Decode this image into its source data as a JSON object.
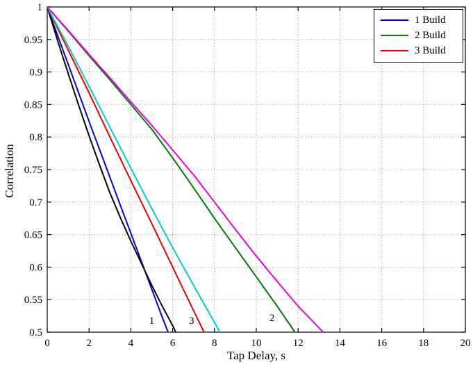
{
  "figure": {
    "background": "#ffffff"
  },
  "chart_data": {
    "type": "line",
    "title": "",
    "xlabel": "Tap Delay, s",
    "ylabel": "Correlation",
    "xlim": [
      0,
      20
    ],
    "ylim": [
      0.5,
      1
    ],
    "xticks": [
      0,
      2,
      4,
      6,
      8,
      10,
      12,
      14,
      16,
      18,
      20
    ],
    "yticks": [
      0.5,
      0.55,
      0.6,
      0.65,
      0.7,
      0.75,
      0.8,
      0.85,
      0.9,
      0.95,
      1
    ],
    "grid": "dotted",
    "legend": {
      "position": "top-right",
      "entries": [
        {
          "label": "1 Build",
          "color": "#0000dd"
        },
        {
          "label": "2 Build",
          "color": "#007a00"
        },
        {
          "label": "3 Build",
          "color": "#e80000"
        }
      ]
    },
    "series": [
      {
        "id": "blue-1-build",
        "color": "#0000dd",
        "points": [
          [
            0,
            1
          ],
          [
            0.5,
            0.956
          ],
          [
            1,
            0.912
          ],
          [
            1.5,
            0.868
          ],
          [
            2,
            0.824
          ],
          [
            2.5,
            0.781
          ],
          [
            3,
            0.738
          ],
          [
            3.5,
            0.695
          ],
          [
            4,
            0.652
          ],
          [
            4.5,
            0.609
          ],
          [
            5,
            0.566
          ],
          [
            5.5,
            0.523
          ],
          [
            5.78,
            0.5
          ]
        ]
      },
      {
        "id": "green-2-build",
        "color": "#007a00",
        "points": [
          [
            0,
            1
          ],
          [
            1,
            0.963
          ],
          [
            2,
            0.925
          ],
          [
            3,
            0.888
          ],
          [
            4,
            0.85
          ],
          [
            5,
            0.812
          ],
          [
            6,
            0.768
          ],
          [
            7,
            0.722
          ],
          [
            8,
            0.675
          ],
          [
            9,
            0.63
          ],
          [
            10,
            0.585
          ],
          [
            11,
            0.54
          ],
          [
            11.85,
            0.5
          ]
        ]
      },
      {
        "id": "red-3-build",
        "color": "#e80000",
        "points": [
          [
            0,
            1
          ],
          [
            1,
            0.934
          ],
          [
            2,
            0.868
          ],
          [
            3,
            0.8
          ],
          [
            4,
            0.733
          ],
          [
            5,
            0.667
          ],
          [
            6,
            0.6
          ],
          [
            7,
            0.533
          ],
          [
            7.5,
            0.5
          ]
        ]
      },
      {
        "id": "black",
        "color": "#000000",
        "points": [
          [
            0,
            1
          ],
          [
            0.5,
            0.948
          ],
          [
            1,
            0.898
          ],
          [
            1.5,
            0.849
          ],
          [
            2,
            0.802
          ],
          [
            2.5,
            0.757
          ],
          [
            3,
            0.714
          ],
          [
            3.5,
            0.676
          ],
          [
            4,
            0.64
          ],
          [
            4.5,
            0.606
          ],
          [
            5,
            0.572
          ],
          [
            5.5,
            0.54
          ],
          [
            6,
            0.51
          ],
          [
            6.15,
            0.5
          ]
        ]
      },
      {
        "id": "cyan",
        "color": "#00cccc",
        "points": [
          [
            0,
            1
          ],
          [
            1,
            0.94
          ],
          [
            2,
            0.878
          ],
          [
            3,
            0.815
          ],
          [
            4,
            0.752
          ],
          [
            5,
            0.69
          ],
          [
            6,
            0.63
          ],
          [
            7,
            0.572
          ],
          [
            8,
            0.515
          ],
          [
            8.25,
            0.5
          ]
        ]
      },
      {
        "id": "magenta",
        "color": "#e600e6",
        "points": [
          [
            0,
            1
          ],
          [
            1,
            0.964
          ],
          [
            2,
            0.927
          ],
          [
            3,
            0.891
          ],
          [
            4,
            0.854
          ],
          [
            5,
            0.818
          ],
          [
            6,
            0.78
          ],
          [
            7,
            0.742
          ],
          [
            8,
            0.7
          ],
          [
            9,
            0.658
          ],
          [
            10,
            0.617
          ],
          [
            11,
            0.578
          ],
          [
            12,
            0.54
          ],
          [
            13.2,
            0.5
          ]
        ]
      }
    ],
    "annotations": [
      {
        "text": "1",
        "x": 5.0,
        "y": 0.513
      },
      {
        "text": "3",
        "x": 6.9,
        "y": 0.513
      },
      {
        "text": "2",
        "x": 10.75,
        "y": 0.517
      }
    ]
  }
}
